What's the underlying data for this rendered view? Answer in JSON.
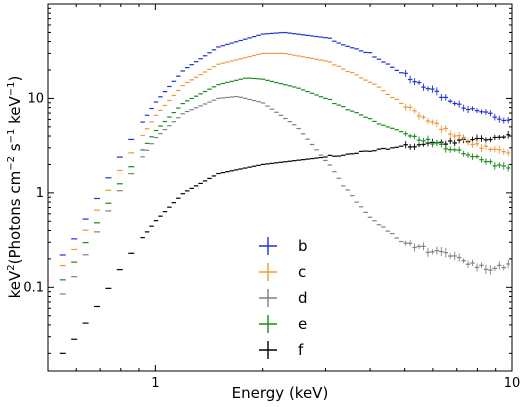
{
  "chart_data": {
    "type": "scatter",
    "xlabel": "Energy (keV)",
    "ylabel_parts": {
      "a": "keV",
      "b": "2",
      "c": "(Photons cm",
      "d": "−2",
      "e": " s",
      "f": "−1",
      "g": " keV",
      "h": "−1",
      "i": ")"
    },
    "x_scale": "log",
    "y_scale": "log",
    "xlim": [
      0.5,
      10
    ],
    "ylim": [
      0.013,
      100
    ],
    "x_ticks": [
      {
        "value": 1,
        "label": "1"
      },
      {
        "value": 10,
        "label": "10"
      }
    ],
    "y_ticks": [
      {
        "value": 0.1,
        "label": "0.1"
      },
      {
        "value": 1,
        "label": "1"
      },
      {
        "value": 10,
        "label": "10"
      }
    ],
    "grid": false,
    "legend_placement": "bottom-center",
    "series": [
      {
        "name": "b",
        "color": "#1f2fd6",
        "x": [
          0.55,
          0.6,
          0.7,
          0.8,
          1.0,
          1.2,
          1.5,
          2.0,
          2.3,
          3.0,
          4.0,
          5.0,
          6.0,
          7.0,
          8.0,
          9.0,
          10.0
        ],
        "y": [
          0.22,
          0.35,
          1.0,
          2.5,
          9.0,
          20,
          35,
          48,
          50,
          44,
          30,
          18,
          12,
          8.5,
          7.5,
          6.5,
          5.5
        ]
      },
      {
        "name": "c",
        "color": "#f5963a",
        "x": [
          0.55,
          0.6,
          0.7,
          0.8,
          1.0,
          1.2,
          1.5,
          2.0,
          2.3,
          3.0,
          4.0,
          5.0,
          6.0,
          7.0,
          8.0,
          9.0,
          10.0
        ],
        "y": [
          0.17,
          0.27,
          0.75,
          1.8,
          6.5,
          14,
          23,
          30,
          30,
          25,
          15,
          8.5,
          5.5,
          4.0,
          3.2,
          2.8,
          2.5
        ]
      },
      {
        "name": "d",
        "color": "#808080",
        "x": [
          0.55,
          0.6,
          0.7,
          0.8,
          1.0,
          1.2,
          1.5,
          1.7,
          2.0,
          2.5,
          3.0,
          3.5,
          4.0,
          4.5,
          5.0,
          6.0,
          7.0,
          8.0,
          9.0,
          10.0
        ],
        "y": [
          0.085,
          0.14,
          0.45,
          1.1,
          3.8,
          7.0,
          10,
          10.5,
          9.0,
          5.0,
          2.2,
          1.0,
          0.55,
          0.38,
          0.3,
          0.24,
          0.2,
          0.17,
          0.16,
          0.17
        ]
      },
      {
        "name": "e",
        "color": "#1a8a1a",
        "x": [
          0.55,
          0.6,
          0.7,
          0.8,
          1.0,
          1.2,
          1.5,
          1.8,
          2.0,
          2.5,
          3.0,
          4.0,
          5.0,
          6.0,
          7.0,
          8.0,
          9.0,
          10.0
        ],
        "y": [
          0.12,
          0.2,
          0.55,
          1.3,
          4.5,
          9.0,
          14,
          16.5,
          16,
          13,
          10,
          6.0,
          4.2,
          3.4,
          2.8,
          2.4,
          2.0,
          1.7
        ]
      },
      {
        "name": "f",
        "color": "#000000",
        "x": [
          0.55,
          0.6,
          0.7,
          0.8,
          0.9,
          1.0,
          1.2,
          1.5,
          2.0,
          3.0,
          4.0,
          5.0,
          6.0,
          7.0,
          8.0,
          9.0,
          10.0
        ],
        "y": [
          0.02,
          0.03,
          0.07,
          0.16,
          0.3,
          0.5,
          1.0,
          1.6,
          2.0,
          2.4,
          2.8,
          3.1,
          3.3,
          3.5,
          3.6,
          3.8,
          4.0
        ]
      }
    ]
  }
}
